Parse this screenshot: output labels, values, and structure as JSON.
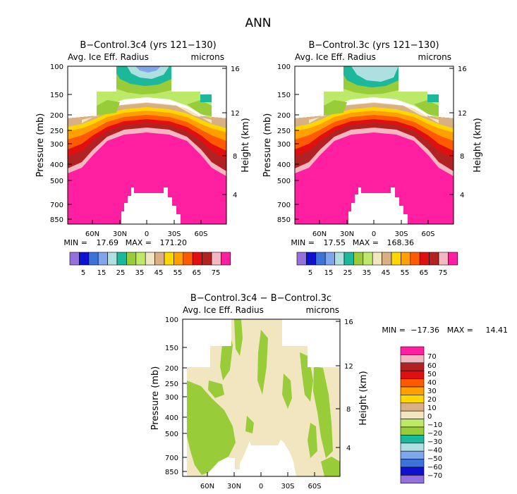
{
  "figure_title": "ANN",
  "colors": {
    "abs_scale": [
      "#9370db",
      "#1010d0",
      "#3d72d8",
      "#7fa6ea",
      "#aee0e2",
      "#1bb89c",
      "#98cc38",
      "#bcea68",
      "#f2e6c0",
      "#d9b084",
      "#ffd700",
      "#ff9f00",
      "#ff5a00",
      "#e11010",
      "#b22222",
      "#f4b6c0",
      "#ff1fa0"
    ],
    "diff_scale": [
      "#9370db",
      "#1010d0",
      "#3d72d8",
      "#7fa6ea",
      "#aee0e2",
      "#1bb89c",
      "#98cc38",
      "#bcea68",
      "#f2e6c0",
      "#d9b084",
      "#ffd700",
      "#ff9f00",
      "#ff5a00",
      "#e11010",
      "#b22222",
      "#f4b6c0",
      "#ff1fa0"
    ]
  },
  "chart_data": [
    {
      "type": "contour",
      "title": "B−Control.3c4 (yrs 121−130)",
      "subtitle_left": "Avg. Ice Eff. Radius",
      "subtitle_right": "microns",
      "ylabel": "Pressure (mb)",
      "ylabel_right": "Height (km)",
      "pressure_ticks": [
        "100",
        "150",
        "200",
        "250",
        "300",
        "400",
        "500",
        "700",
        "850"
      ],
      "height_ticks": [
        "16",
        "12",
        "8",
        "4"
      ],
      "lat_ticks": [
        "60N",
        "30N",
        "0",
        "30S",
        "60S"
      ],
      "min_label": "MIN =",
      "min_value": "17.69",
      "max_label": "MAX =",
      "max_value": "171.20",
      "min": 17.69,
      "max": 171.2,
      "colorbar_labels": [
        "5",
        "15",
        "25",
        "35",
        "45",
        "55",
        "65",
        "75"
      ],
      "contour_levels": [
        0,
        5,
        10,
        15,
        20,
        25,
        30,
        35,
        40,
        45,
        50,
        55,
        60,
        65,
        70,
        75
      ]
    },
    {
      "type": "contour",
      "title": "B−Control.3c (yrs 121−130)",
      "subtitle_left": "Avg. Ice Eff. Radius",
      "subtitle_right": "microns",
      "ylabel": "Pressure (mb)",
      "ylabel_right": "Height (km)",
      "pressure_ticks": [
        "100",
        "150",
        "200",
        "250",
        "300",
        "400",
        "500",
        "700",
        "850"
      ],
      "height_ticks": [
        "16",
        "12",
        "8",
        "4"
      ],
      "lat_ticks": [
        "60N",
        "30N",
        "0",
        "30S",
        "60S"
      ],
      "min_label": "MIN =",
      "min_value": "17.55",
      "max_label": "MAX =",
      "max_value": "168.36",
      "min": 17.55,
      "max": 168.36,
      "colorbar_labels": [
        "5",
        "15",
        "25",
        "35",
        "45",
        "55",
        "65",
        "75"
      ],
      "contour_levels": [
        0,
        5,
        10,
        15,
        20,
        25,
        30,
        35,
        40,
        45,
        50,
        55,
        60,
        65,
        70,
        75
      ]
    },
    {
      "type": "contour",
      "title": "B−Control.3c4 − B−Control.3c",
      "subtitle_left": "Avg. Ice Eff. Radius",
      "subtitle_right": "microns",
      "ylabel": "Pressure (mb)",
      "ylabel_right": "Height (km)",
      "pressure_ticks": [
        "100",
        "150",
        "200",
        "250",
        "300",
        "400",
        "500",
        "700",
        "850"
      ],
      "height_ticks": [
        "16",
        "12",
        "8",
        "4"
      ],
      "lat_ticks": [
        "60N",
        "30N",
        "0",
        "30S",
        "60S"
      ],
      "min_label": "MIN =",
      "min_value": "−17.36",
      "max_label": "MAX =",
      "max_value": "14.41",
      "min": -17.36,
      "max": 14.41,
      "colorbar_labels": [
        "70",
        "60",
        "50",
        "40",
        "30",
        "20",
        "10",
        "0",
        "−10",
        "−20",
        "−30",
        "−40",
        "−50",
        "−60",
        "−70"
      ],
      "contour_levels": [
        -70,
        -60,
        -50,
        -40,
        -30,
        -20,
        -10,
        0,
        10,
        20,
        30,
        40,
        50,
        60,
        70
      ]
    }
  ]
}
